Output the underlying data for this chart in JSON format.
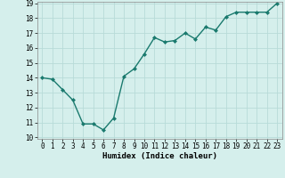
{
  "x": [
    0,
    1,
    2,
    3,
    4,
    5,
    6,
    7,
    8,
    9,
    10,
    11,
    12,
    13,
    14,
    15,
    16,
    17,
    18,
    19,
    20,
    21,
    22,
    23
  ],
  "y": [
    14.0,
    13.9,
    13.2,
    12.5,
    10.9,
    10.9,
    10.5,
    11.3,
    14.1,
    14.6,
    15.6,
    16.7,
    16.4,
    16.5,
    17.0,
    16.6,
    17.4,
    17.2,
    18.1,
    18.4,
    18.4,
    18.4,
    18.4,
    19.0
  ],
  "line_color": "#1a7a6e",
  "marker": "D",
  "marker_size": 2,
  "xlabel": "Humidex (Indice chaleur)",
  "ylim": [
    10,
    19
  ],
  "xlim": [
    -0.5,
    23.5
  ],
  "yticks": [
    10,
    11,
    12,
    13,
    14,
    15,
    16,
    17,
    18,
    19
  ],
  "xticks": [
    0,
    1,
    2,
    3,
    4,
    5,
    6,
    7,
    8,
    9,
    10,
    11,
    12,
    13,
    14,
    15,
    16,
    17,
    18,
    19,
    20,
    21,
    22,
    23
  ],
  "background_color": "#d5efec",
  "grid_color": "#b8dbd8",
  "tick_fontsize": 5.5,
  "xlabel_fontsize": 6.5,
  "line_width": 1.0
}
